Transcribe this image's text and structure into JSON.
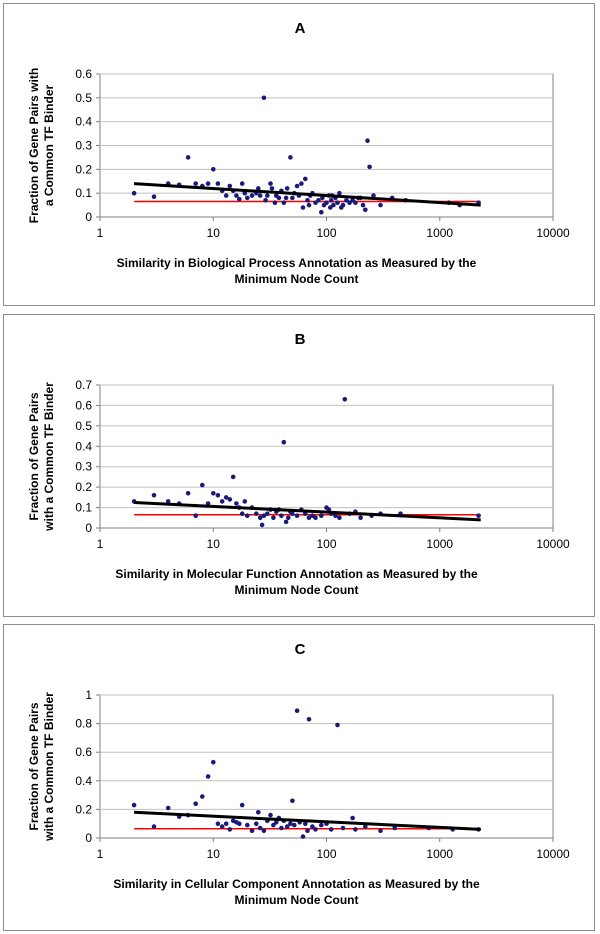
{
  "colors": {
    "points": "#1a1a7a",
    "trend": "#000000",
    "baseline": "#ff0000",
    "grid": "#c0c0c0",
    "axis": "#808080"
  },
  "chart_data": [
    {
      "type": "scatter",
      "panel": "A",
      "xscale": "log",
      "xlim": [
        1,
        10000
      ],
      "ylim": [
        0,
        0.6
      ],
      "x_ticks": [
        "1",
        "10",
        "100",
        "1000",
        "10000"
      ],
      "y_ticks": [
        "0",
        "0.1",
        "0.2",
        "0.3",
        "0.4",
        "0.5",
        "0.6"
      ],
      "ylabel": [
        "Fraction of Gene Pairs with",
        "a Common TF Binder"
      ],
      "xlabel": [
        "Similarity in Biological Process Annotation as Measured by the",
        "Minimum Node Count"
      ],
      "trend": {
        "x": [
          2,
          2300
        ],
        "y": [
          0.14,
          0.05
        ]
      },
      "baseline": {
        "x": [
          2,
          2300
        ],
        "y": [
          0.065,
          0.065
        ]
      },
      "points": [
        [
          2,
          0.1
        ],
        [
          3,
          0.085
        ],
        [
          4,
          0.14
        ],
        [
          5,
          0.135
        ],
        [
          6,
          0.25
        ],
        [
          7,
          0.14
        ],
        [
          8,
          0.13
        ],
        [
          9,
          0.14
        ],
        [
          10,
          0.2
        ],
        [
          11,
          0.14
        ],
        [
          12,
          0.11
        ],
        [
          13,
          0.09
        ],
        [
          14,
          0.13
        ],
        [
          15,
          0.11
        ],
        [
          16,
          0.09
        ],
        [
          17,
          0.075
        ],
        [
          18,
          0.14
        ],
        [
          19,
          0.1
        ],
        [
          20,
          0.08
        ],
        [
          22,
          0.09
        ],
        [
          24,
          0.1
        ],
        [
          25,
          0.12
        ],
        [
          26,
          0.09
        ],
        [
          28,
          0.5
        ],
        [
          29,
          0.07
        ],
        [
          30,
          0.09
        ],
        [
          32,
          0.14
        ],
        [
          33,
          0.12
        ],
        [
          35,
          0.06
        ],
        [
          36,
          0.09
        ],
        [
          38,
          0.08
        ],
        [
          40,
          0.11
        ],
        [
          42,
          0.06
        ],
        [
          44,
          0.08
        ],
        [
          45,
          0.12
        ],
        [
          48,
          0.25
        ],
        [
          50,
          0.08
        ],
        [
          52,
          0.1
        ],
        [
          55,
          0.13
        ],
        [
          57,
          0.09
        ],
        [
          60,
          0.14
        ],
        [
          62,
          0.04
        ],
        [
          65,
          0.16
        ],
        [
          68,
          0.07
        ],
        [
          70,
          0.05
        ],
        [
          72,
          0.09
        ],
        [
          75,
          0.1
        ],
        [
          80,
          0.06
        ],
        [
          85,
          0.07
        ],
        [
          90,
          0.02
        ],
        [
          92,
          0.08
        ],
        [
          95,
          0.05
        ],
        [
          100,
          0.06
        ],
        [
          105,
          0.09
        ],
        [
          108,
          0.04
        ],
        [
          110,
          0.07
        ],
        [
          112,
          0.09
        ],
        [
          115,
          0.05
        ],
        [
          120,
          0.08
        ],
        [
          125,
          0.06
        ],
        [
          130,
          0.1
        ],
        [
          135,
          0.04
        ],
        [
          140,
          0.05
        ],
        [
          150,
          0.07
        ],
        [
          160,
          0.06
        ],
        [
          170,
          0.07
        ],
        [
          180,
          0.06
        ],
        [
          190,
          0.08
        ],
        [
          200,
          0.08
        ],
        [
          210,
          0.05
        ],
        [
          220,
          0.03
        ],
        [
          230,
          0.32
        ],
        [
          240,
          0.21
        ],
        [
          260,
          0.09
        ],
        [
          300,
          0.05
        ],
        [
          380,
          0.08
        ],
        [
          500,
          0.07
        ],
        [
          1200,
          0.06
        ],
        [
          1500,
          0.05
        ],
        [
          2200,
          0.06
        ]
      ]
    },
    {
      "type": "scatter",
      "panel": "B",
      "xscale": "log",
      "xlim": [
        1,
        10000
      ],
      "ylim": [
        0,
        0.7
      ],
      "x_ticks": [
        "1",
        "10",
        "100",
        "1000",
        "10000"
      ],
      "y_ticks": [
        "0",
        "0.1",
        "0.2",
        "0.3",
        "0.4",
        "0.5",
        "0.6",
        "0.7"
      ],
      "ylabel": [
        "Fraction of Gene Pairs",
        "with a Common TF Binder"
      ],
      "xlabel": [
        "Similarity in Molecular Function Annotation as Measured by the",
        "Minimum Node Count"
      ],
      "trend": {
        "x": [
          2,
          2300
        ],
        "y": [
          0.125,
          0.04
        ]
      },
      "baseline": {
        "x": [
          2,
          2300
        ],
        "y": [
          0.065,
          0.065
        ]
      },
      "points": [
        [
          2,
          0.13
        ],
        [
          3,
          0.16
        ],
        [
          4,
          0.13
        ],
        [
          5,
          0.12
        ],
        [
          6,
          0.17
        ],
        [
          7,
          0.06
        ],
        [
          8,
          0.21
        ],
        [
          9,
          0.12
        ],
        [
          10,
          0.17
        ],
        [
          11,
          0.16
        ],
        [
          12,
          0.13
        ],
        [
          13,
          0.15
        ],
        [
          14,
          0.14
        ],
        [
          15,
          0.25
        ],
        [
          16,
          0.12
        ],
        [
          17,
          0.1
        ],
        [
          18,
          0.07
        ],
        [
          19,
          0.13
        ],
        [
          20,
          0.06
        ],
        [
          22,
          0.1
        ],
        [
          24,
          0.07
        ],
        [
          26,
          0.05
        ],
        [
          27,
          0.015
        ],
        [
          28,
          0.06
        ],
        [
          30,
          0.07
        ],
        [
          32,
          0.09
        ],
        [
          34,
          0.05
        ],
        [
          36,
          0.08
        ],
        [
          38,
          0.09
        ],
        [
          40,
          0.06
        ],
        [
          42,
          0.42
        ],
        [
          44,
          0.03
        ],
        [
          46,
          0.05
        ],
        [
          48,
          0.08
        ],
        [
          50,
          0.07
        ],
        [
          55,
          0.06
        ],
        [
          60,
          0.09
        ],
        [
          65,
          0.07
        ],
        [
          70,
          0.05
        ],
        [
          75,
          0.06
        ],
        [
          80,
          0.05
        ],
        [
          90,
          0.06
        ],
        [
          100,
          0.1
        ],
        [
          105,
          0.09
        ],
        [
          110,
          0.07
        ],
        [
          120,
          0.06
        ],
        [
          130,
          0.05
        ],
        [
          145,
          0.63
        ],
        [
          160,
          0.07
        ],
        [
          180,
          0.08
        ],
        [
          200,
          0.05
        ],
        [
          250,
          0.06
        ],
        [
          300,
          0.07
        ],
        [
          450,
          0.07
        ],
        [
          2200,
          0.06
        ]
      ]
    },
    {
      "type": "scatter",
      "panel": "C",
      "xscale": "log",
      "xlim": [
        1,
        10000
      ],
      "ylim": [
        0,
        1
      ],
      "x_ticks": [
        "1",
        "10",
        "100",
        "1000",
        "10000"
      ],
      "y_ticks": [
        "0",
        "0.2",
        "0.4",
        "0.6",
        "0.8",
        "1"
      ],
      "ylabel": [
        "Fraction of Gene Pairs",
        "with a Common TF Binder"
      ],
      "xlabel": [
        "Similarity in Cellular Component Annotation as Measured by the",
        "Minimum Node Count"
      ],
      "trend": {
        "x": [
          2,
          2300
        ],
        "y": [
          0.18,
          0.06
        ]
      },
      "baseline": {
        "x": [
          2,
          2300
        ],
        "y": [
          0.065,
          0.065
        ]
      },
      "points": [
        [
          2,
          0.23
        ],
        [
          3,
          0.08
        ],
        [
          4,
          0.21
        ],
        [
          5,
          0.15
        ],
        [
          6,
          0.16
        ],
        [
          7,
          0.24
        ],
        [
          8,
          0.29
        ],
        [
          9,
          0.43
        ],
        [
          10,
          0.53
        ],
        [
          11,
          0.1
        ],
        [
          12,
          0.08
        ],
        [
          13,
          0.1
        ],
        [
          14,
          0.06
        ],
        [
          15,
          0.12
        ],
        [
          16,
          0.11
        ],
        [
          17,
          0.1
        ],
        [
          18,
          0.23
        ],
        [
          20,
          0.09
        ],
        [
          22,
          0.05
        ],
        [
          24,
          0.1
        ],
        [
          25,
          0.18
        ],
        [
          26,
          0.07
        ],
        [
          28,
          0.05
        ],
        [
          30,
          0.12
        ],
        [
          32,
          0.16
        ],
        [
          34,
          0.09
        ],
        [
          36,
          0.11
        ],
        [
          38,
          0.14
        ],
        [
          40,
          0.07
        ],
        [
          42,
          0.12
        ],
        [
          45,
          0.08
        ],
        [
          48,
          0.1
        ],
        [
          50,
          0.26
        ],
        [
          52,
          0.09
        ],
        [
          55,
          0.89
        ],
        [
          58,
          0.11
        ],
        [
          62,
          0.01
        ],
        [
          65,
          0.1
        ],
        [
          68,
          0.05
        ],
        [
          70,
          0.83
        ],
        [
          75,
          0.08
        ],
        [
          80,
          0.06
        ],
        [
          90,
          0.09
        ],
        [
          100,
          0.1
        ],
        [
          110,
          0.06
        ],
        [
          125,
          0.79
        ],
        [
          140,
          0.07
        ],
        [
          170,
          0.14
        ],
        [
          180,
          0.06
        ],
        [
          220,
          0.08
        ],
        [
          300,
          0.05
        ],
        [
          400,
          0.07
        ],
        [
          800,
          0.07
        ],
        [
          1300,
          0.06
        ],
        [
          2200,
          0.06
        ]
      ]
    }
  ]
}
